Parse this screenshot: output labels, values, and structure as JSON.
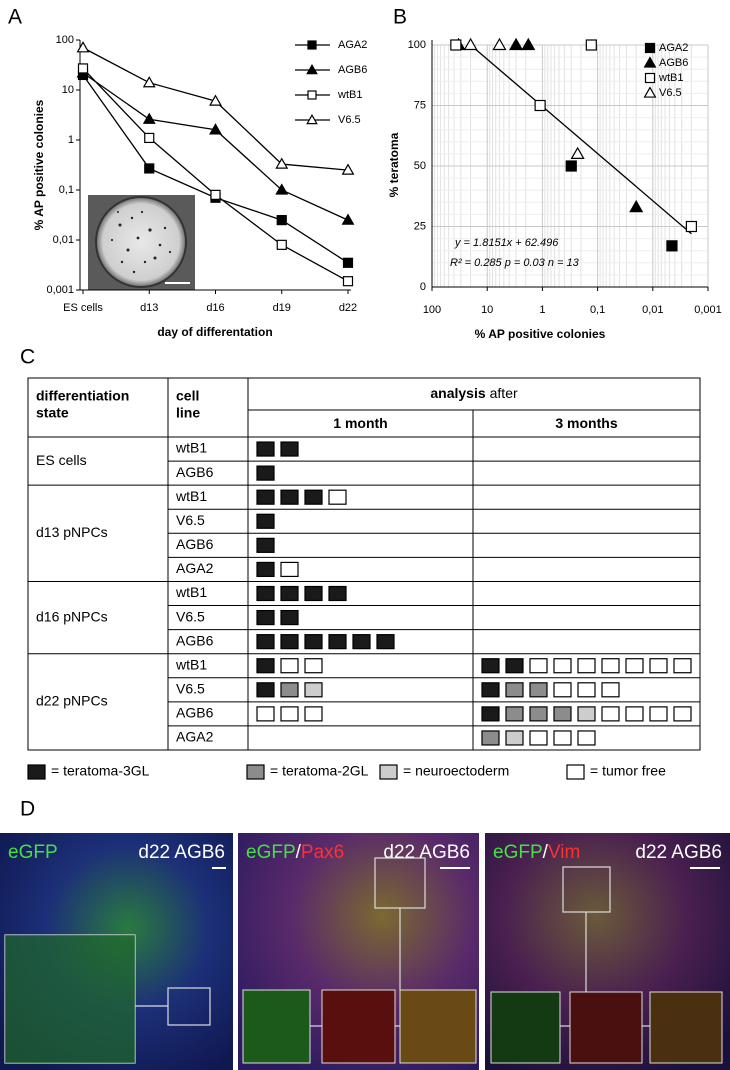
{
  "panel_labels": [
    "A",
    "B",
    "C",
    "D"
  ],
  "chart_data": [
    {
      "type": "line",
      "x_label": "day of differentation",
      "y_label": "% AP positive colonies",
      "categories": [
        "ES cells",
        "d13",
        "d16",
        "d19",
        "d22"
      ],
      "y_log": true,
      "ylim": [
        0.001,
        100
      ],
      "yticks": [
        {
          "value": 0.001,
          "label": "0,001"
        },
        {
          "value": 0.01,
          "label": "0,01"
        },
        {
          "value": 0.1,
          "label": "0,1"
        },
        1,
        10,
        100
      ],
      "legend": "upper right",
      "series": [
        {
          "name": "AGA2",
          "color": "#000000",
          "marker": "square",
          "fill": "#000000",
          "values": [
            20,
            0.27,
            0.07,
            0.025,
            0.0035
          ]
        },
        {
          "name": "AGB6",
          "color": "#000000",
          "marker": "triangle",
          "fill": "#000000",
          "values": [
            22,
            2.6,
            1.6,
            0.1,
            0.025
          ]
        },
        {
          "name": "wtB1",
          "color": "#000000",
          "marker": "square",
          "fill": "#ffffff",
          "values": [
            27,
            1.1,
            0.08,
            0.008,
            0.0015
          ]
        },
        {
          "name": "V6.5",
          "color": "#000000",
          "marker": "triangle",
          "fill": "#ffffff",
          "values": [
            70,
            14,
            6,
            0.33,
            0.25
          ]
        }
      ]
    },
    {
      "type": "scatter",
      "x_label": "% AP positive colonies",
      "y_label": "% teratoma",
      "x_log": true,
      "xlim": [
        100,
        0.001
      ],
      "xticks": [
        100,
        10,
        1,
        {
          "value": 0.1,
          "label": "0,1"
        },
        {
          "value": 0.01,
          "label": "0,01"
        },
        {
          "value": 0.001,
          "label": "0,001"
        }
      ],
      "ylim": [
        0,
        100
      ],
      "yticks": [
        0,
        25,
        50,
        75,
        100
      ],
      "grid": true,
      "legend": "upper right",
      "series": [
        {
          "name": "AGA2",
          "marker": "square",
          "fill": "#000000",
          "x": [
            0.3,
            0.0045
          ],
          "y": [
            50,
            17
          ]
        },
        {
          "name": "AGB6",
          "marker": "triangle",
          "fill": "#000000",
          "x": [
            33,
            3,
            1.8,
            0.02
          ],
          "y": [
            100,
            100,
            100,
            33
          ]
        },
        {
          "name": "wtB1",
          "marker": "square",
          "fill": "#ffffff",
          "x": [
            37,
            0.13,
            1.1,
            0.002
          ],
          "y": [
            100,
            100,
            75,
            25
          ]
        },
        {
          "name": "V6.5",
          "marker": "triangle",
          "fill": "#ffffff",
          "x": [
            20,
            6,
            0.23
          ],
          "y": [
            100,
            100,
            55
          ]
        }
      ],
      "trendline": {
        "x": [
          20,
          0.002
        ],
        "y": [
          100,
          22
        ]
      },
      "annotations": [
        "y = 1.8151x + 62.496",
        "R² = 0.285  p = 0.03  n = 13"
      ]
    }
  ],
  "table": {
    "headers": {
      "state": [
        "differentiation",
        "state"
      ],
      "line": [
        "cell",
        "line"
      ],
      "analysis": "analysis",
      "after": "after",
      "m1": "1 month",
      "m3": "3 months"
    },
    "groups": [
      {
        "state": "ES cells",
        "rows": [
          {
            "line": "wtB1",
            "m1": [
              2,
              0,
              0,
              0
            ],
            "m3": [
              0,
              0,
              0,
              0
            ]
          },
          {
            "line": "AGB6",
            "m1": [
              1,
              0,
              0,
              0
            ],
            "m3": [
              0,
              0,
              0,
              0
            ]
          }
        ]
      },
      {
        "state": "d13 pNPCs",
        "rows": [
          {
            "line": "wtB1",
            "m1": [
              3,
              0,
              0,
              1
            ],
            "m3": [
              0,
              0,
              0,
              0
            ]
          },
          {
            "line": "V6.5",
            "m1": [
              1,
              0,
              0,
              0
            ],
            "m3": [
              0,
              0,
              0,
              0
            ]
          },
          {
            "line": "AGB6",
            "m1": [
              1,
              0,
              0,
              0
            ],
            "m3": [
              0,
              0,
              0,
              0
            ]
          },
          {
            "line": "AGA2",
            "m1": [
              1,
              0,
              0,
              1
            ],
            "m3": [
              0,
              0,
              0,
              0
            ]
          }
        ]
      },
      {
        "state": "d16 pNPCs",
        "rows": [
          {
            "line": "wtB1",
            "m1": [
              4,
              0,
              0,
              0
            ],
            "m3": [
              0,
              0,
              0,
              0
            ]
          },
          {
            "line": "V6.5",
            "m1": [
              2,
              0,
              0,
              0
            ],
            "m3": [
              0,
              0,
              0,
              0
            ]
          },
          {
            "line": "AGB6",
            "m1": [
              6,
              0,
              0,
              0
            ],
            "m3": [
              0,
              0,
              0,
              0
            ]
          }
        ]
      },
      {
        "state": "d22 pNPCs",
        "rows": [
          {
            "line": "wtB1",
            "m1": [
              1,
              0,
              0,
              2
            ],
            "m3": [
              2,
              0,
              0,
              7
            ]
          },
          {
            "line": "V6.5",
            "m1": [
              1,
              1,
              1,
              0
            ],
            "m3": [
              1,
              2,
              0,
              3
            ]
          },
          {
            "line": "AGB6",
            "m1": [
              0,
              0,
              0,
              3
            ],
            "m3": [
              1,
              3,
              1,
              4
            ]
          },
          {
            "line": "AGA2",
            "m1": [
              0,
              0,
              0,
              0
            ],
            "m3": [
              0,
              1,
              1,
              3
            ]
          }
        ]
      }
    ],
    "legend": [
      {
        "label": "= teratoma-3GL",
        "color": "#1a1a1a"
      },
      {
        "label": "= teratoma-2GL",
        "color": "#8c8c8c"
      },
      {
        "label": "= neuroectoderm",
        "color": "#cdcdcd"
      },
      {
        "label": "= tumor free",
        "color": "#ffffff"
      }
    ]
  },
  "images": [
    {
      "labels": [
        {
          "text": "eGFP",
          "color": "#45e045"
        }
      ],
      "caption": "d22 AGB6"
    },
    {
      "labels": [
        {
          "text": "eGFP",
          "color": "#45e045"
        },
        {
          "text": "/",
          "color": "#ffffff"
        },
        {
          "text": "Pax6",
          "color": "#ff3030"
        }
      ],
      "caption": "d22 AGB6"
    },
    {
      "labels": [
        {
          "text": "eGFP",
          "color": "#45e045"
        },
        {
          "text": "/",
          "color": "#ffffff"
        },
        {
          "text": "Vim",
          "color": "#ff3030"
        }
      ],
      "caption": "d22 AGB6"
    }
  ]
}
